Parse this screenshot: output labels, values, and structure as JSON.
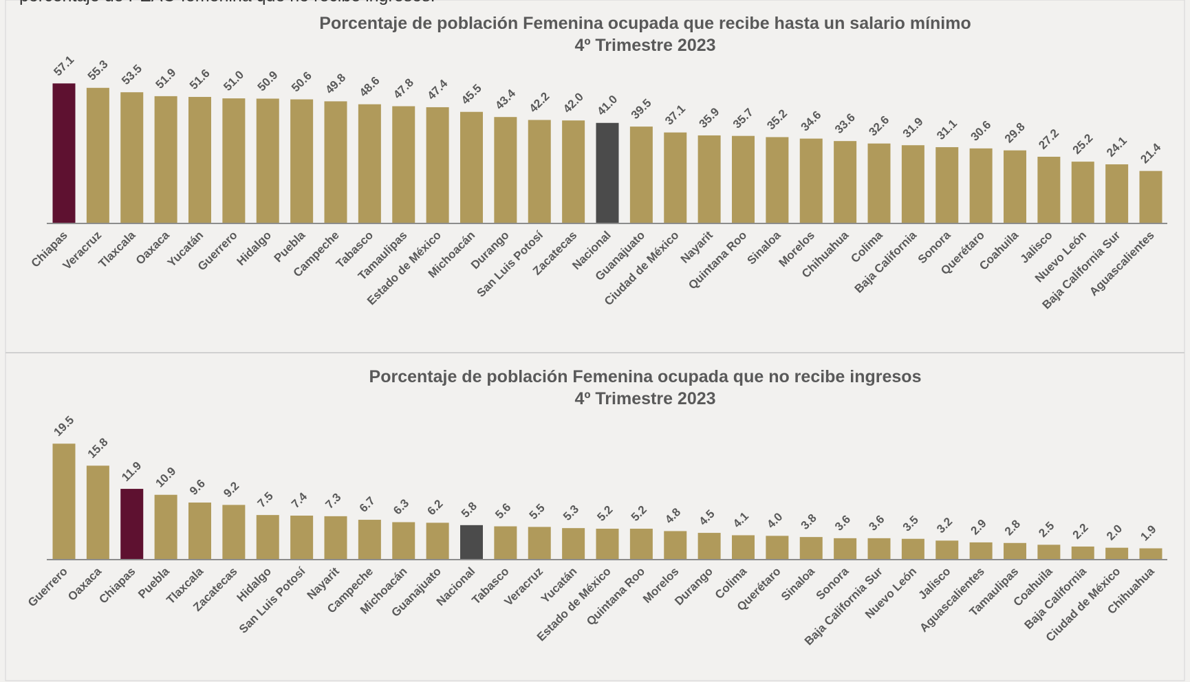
{
  "caption": "porcentaje de PEAO femenina que no recibe ingresos.",
  "chart_data": [
    {
      "type": "bar",
      "title": "Porcentaje de población Femenina ocupada que recibe hasta un salario mínimo",
      "subtitle": "4º Trimestre 2023",
      "categories": [
        "Chiapas",
        "Veracruz",
        "Tlaxcala",
        "Oaxaca",
        "Yucatán",
        "Guerrero",
        "Hidalgo",
        "Puebla",
        "Campeche",
        "Tabasco",
        "Tamaulipas",
        "Estado de México",
        "Michoacán",
        "Durango",
        "San Luis Potosí",
        "Zacatecas",
        "Nacional",
        "Guanajuato",
        "Ciudad de México",
        "Nayarit",
        "Quintana Roo",
        "Sinaloa",
        "Morelos",
        "Chihuahua",
        "Colima",
        "Baja California",
        "Sonora",
        "Querétaro",
        "Coahuila",
        "Jalisco",
        "Nuevo León",
        "Baja California Sur",
        "Aguascalientes"
      ],
      "values": [
        57.1,
        55.3,
        53.5,
        51.9,
        51.6,
        51.0,
        50.9,
        50.6,
        49.8,
        48.6,
        47.8,
        47.4,
        45.5,
        43.4,
        42.2,
        42.0,
        41.0,
        39.5,
        37.1,
        35.9,
        35.7,
        35.2,
        34.6,
        33.6,
        32.6,
        31.9,
        31.1,
        30.6,
        29.8,
        27.2,
        25.2,
        24.1,
        21.4
      ],
      "value_labels": [
        "57.1",
        "55.3",
        "53.5",
        "51.9",
        "51.6",
        "51.0",
        "50.9",
        "50.6",
        "49.8",
        "48.6",
        "47.8",
        "47.4",
        "45.5",
        "43.4",
        "42.2",
        "42.0",
        "41.0",
        "39.5",
        "37.1",
        "35.9",
        "35.7",
        "35.2",
        "34.6",
        "33.6",
        "32.6",
        "31.9",
        "31.1",
        "30.6",
        "29.8",
        "27.2",
        "25.2",
        "24.1",
        "21.4"
      ],
      "colors": [
        "#5e1130",
        "#b09a5b",
        "#b09a5b",
        "#b09a5b",
        "#b09a5b",
        "#b09a5b",
        "#b09a5b",
        "#b09a5b",
        "#b09a5b",
        "#b09a5b",
        "#b09a5b",
        "#b09a5b",
        "#b09a5b",
        "#b09a5b",
        "#b09a5b",
        "#b09a5b",
        "#4b4b4b",
        "#b09a5b",
        "#b09a5b",
        "#b09a5b",
        "#b09a5b",
        "#b09a5b",
        "#b09a5b",
        "#b09a5b",
        "#b09a5b",
        "#b09a5b",
        "#b09a5b",
        "#b09a5b",
        "#b09a5b",
        "#b09a5b",
        "#b09a5b",
        "#b09a5b",
        "#b09a5b"
      ],
      "ylim": [
        0,
        60
      ]
    },
    {
      "type": "bar",
      "title": "Porcentaje de población Femenina ocupada que no recibe ingresos",
      "subtitle": "4º Trimestre 2023",
      "categories": [
        "Guerrero",
        "Oaxaca",
        "Chiapas",
        "Puebla",
        "Tlaxcala",
        "Zacatecas",
        "Hidalgo",
        "San Luis Potosí",
        "Nayarit",
        "Campeche",
        "Michoacán",
        "Guanajuato",
        "Nacional",
        "Tabasco",
        "Veracruz",
        "Yucatán",
        "Estado de México",
        "Quintana Roo",
        "Morelos",
        "Durango",
        "Colima",
        "Querétaro",
        "Sinaloa",
        "Sonora",
        "Baja California Sur",
        "Nuevo León",
        "Jalisco",
        "Aguascalientes",
        "Tamaulipas",
        "Coahuila",
        "Baja California",
        "Ciudad de México",
        "Chihuahua"
      ],
      "values": [
        19.5,
        15.8,
        11.9,
        10.9,
        9.6,
        9.2,
        7.5,
        7.4,
        7.3,
        6.7,
        6.3,
        6.2,
        5.8,
        5.6,
        5.5,
        5.3,
        5.2,
        5.2,
        4.8,
        4.5,
        4.1,
        4.0,
        3.8,
        3.6,
        3.6,
        3.5,
        3.2,
        2.9,
        2.8,
        2.5,
        2.2,
        2.0,
        1.9
      ],
      "value_labels": [
        "19.5",
        "15.8",
        "11.9",
        "10.9",
        "9.6",
        "9.2",
        "7.5",
        "7.4",
        "7.3",
        "6.7",
        "6.3",
        "6.2",
        "5.8",
        "5.6",
        "5.5",
        "5.3",
        "5.2",
        "5.2",
        "4.8",
        "4.5",
        "4.1",
        "4.0",
        "3.8",
        "3.6",
        "3.6",
        "3.5",
        "3.2",
        "2.9",
        "2.8",
        "2.5",
        "2.2",
        "2.0",
        "1.9"
      ],
      "colors": [
        "#b09a5b",
        "#b09a5b",
        "#5e1130",
        "#b09a5b",
        "#b09a5b",
        "#b09a5b",
        "#b09a5b",
        "#b09a5b",
        "#b09a5b",
        "#b09a5b",
        "#b09a5b",
        "#b09a5b",
        "#4b4b4b",
        "#b09a5b",
        "#b09a5b",
        "#b09a5b",
        "#b09a5b",
        "#b09a5b",
        "#b09a5b",
        "#b09a5b",
        "#b09a5b",
        "#b09a5b",
        "#b09a5b",
        "#b09a5b",
        "#b09a5b",
        "#b09a5b",
        "#b09a5b",
        "#b09a5b",
        "#b09a5b",
        "#b09a5b",
        "#b09a5b",
        "#b09a5b",
        "#b09a5b"
      ],
      "ylim": [
        0,
        20
      ]
    }
  ]
}
